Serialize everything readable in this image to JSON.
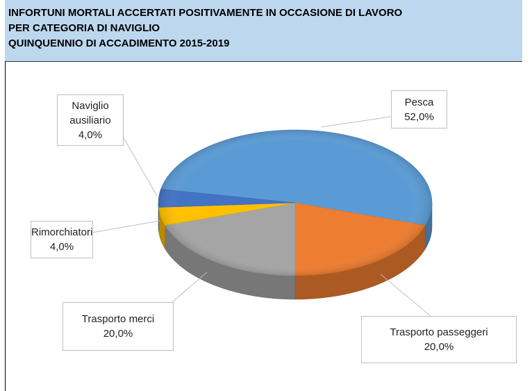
{
  "chart_data": {
    "type": "pie",
    "title": [
      "INFORTUNI MORTALI ACCERTATI POSITIVAMENTE IN OCCASIONE DI LAVORO",
      "PER CATEGORIA DI NAVIGLIO",
      "QUINQUENNIO DI ACCADIMENTO 2015-2019"
    ],
    "categories": [
      "Pesca",
      "Trasporto passeggeri",
      "Trasporto merci",
      "Rimorchiatori",
      "Naviglio ausiliario"
    ],
    "values": [
      52,
      20,
      20,
      4,
      4
    ],
    "value_labels": [
      "52,0%",
      "20,0%",
      "20,0%",
      "4,0%",
      "4,0%"
    ],
    "colors": [
      "#5b9bd5",
      "#ed7d31",
      "#a5a5a5",
      "#ffc000",
      "#4472c4"
    ]
  }
}
